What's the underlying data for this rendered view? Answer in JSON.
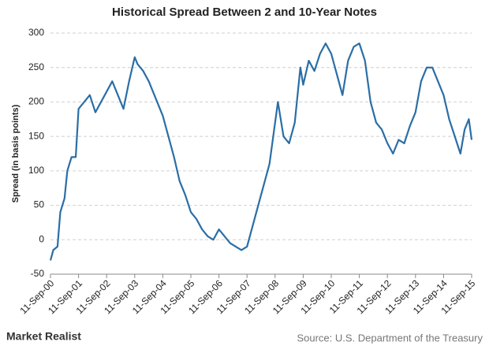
{
  "chart_data": {
    "type": "line",
    "title": "Historical Spread Between 2 and 10-Year Notes",
    "y_label": "Spread (in basis points)",
    "x": [
      2000.69,
      2000.79,
      2000.94,
      2001.04,
      2001.19,
      2001.29,
      2001.44,
      2001.59,
      2001.69,
      2001.89,
      2002.09,
      2002.29,
      2002.49,
      2002.69,
      2002.89,
      2003.09,
      2003.29,
      2003.49,
      2003.69,
      2003.79,
      2003.99,
      2004.19,
      2004.39,
      2004.59,
      2004.69,
      2004.89,
      2005.09,
      2005.29,
      2005.49,
      2005.69,
      2005.89,
      2006.09,
      2006.29,
      2006.49,
      2006.69,
      2006.89,
      2007.09,
      2007.29,
      2007.49,
      2007.69,
      2007.89,
      2008.09,
      2008.29,
      2008.49,
      2008.69,
      2008.79,
      2008.99,
      2009.19,
      2009.39,
      2009.59,
      2009.69,
      2009.89,
      2010.09,
      2010.29,
      2010.49,
      2010.69,
      2010.89,
      2011.09,
      2011.29,
      2011.49,
      2011.69,
      2011.89,
      2012.09,
      2012.29,
      2012.49,
      2012.69,
      2012.89,
      2013.09,
      2013.29,
      2013.49,
      2013.69,
      2013.89,
      2014.09,
      2014.29,
      2014.49,
      2014.69,
      2014.89,
      2015.09,
      2015.29,
      2015.44,
      2015.59,
      2015.69
    ],
    "series": [
      {
        "color": "#2a6ea6",
        "values": [
          -30,
          -15,
          -10,
          40,
          60,
          100,
          120,
          120,
          190,
          200,
          210,
          185,
          200,
          215,
          230,
          210,
          190,
          230,
          265,
          255,
          245,
          230,
          210,
          190,
          180,
          150,
          120,
          85,
          65,
          40,
          30,
          15,
          5,
          0,
          15,
          5,
          -5,
          -10,
          -15,
          -10,
          20,
          50,
          80,
          110,
          170,
          200,
          150,
          140,
          170,
          250,
          225,
          260,
          245,
          270,
          285,
          270,
          240,
          210,
          260,
          280,
          285,
          260,
          200,
          170,
          160,
          140,
          125,
          145,
          140,
          165,
          185,
          230,
          250,
          250,
          230,
          210,
          175,
          150,
          125,
          160,
          175,
          145
        ]
      }
    ],
    "xlim": [
      2000.69,
      2015.69
    ],
    "xticks": [
      {
        "value": 2000.69,
        "label": "11-Sep-00"
      },
      {
        "value": 2001.69,
        "label": "11-Sep-01"
      },
      {
        "value": 2002.69,
        "label": "11-Sep-02"
      },
      {
        "value": 2003.69,
        "label": "11-Sep-03"
      },
      {
        "value": 2004.69,
        "label": "11-Sep-04"
      },
      {
        "value": 2005.69,
        "label": "11-Sep-05"
      },
      {
        "value": 2006.69,
        "label": "11-Sep-06"
      },
      {
        "value": 2007.69,
        "label": "11-Sep-07"
      },
      {
        "value": 2008.69,
        "label": "11-Sep-08"
      },
      {
        "value": 2009.69,
        "label": "11-Sep-09"
      },
      {
        "value": 2010.69,
        "label": "11-Sep-10"
      },
      {
        "value": 2011.69,
        "label": "11-Sep-11"
      },
      {
        "value": 2012.69,
        "label": "11-Sep-12"
      },
      {
        "value": 2013.69,
        "label": "11-Sep-13"
      },
      {
        "value": 2014.69,
        "label": "11-Sep-14"
      },
      {
        "value": 2015.69,
        "label": "11-Sep-15"
      }
    ],
    "ylim": [
      -50,
      300
    ],
    "yticks": [
      -50,
      0,
      50,
      100,
      150,
      200,
      250,
      300
    ],
    "grid": true
  },
  "footer": {
    "logo": "Market Realist",
    "source": "Source: U.S. Department of the Treasury"
  }
}
